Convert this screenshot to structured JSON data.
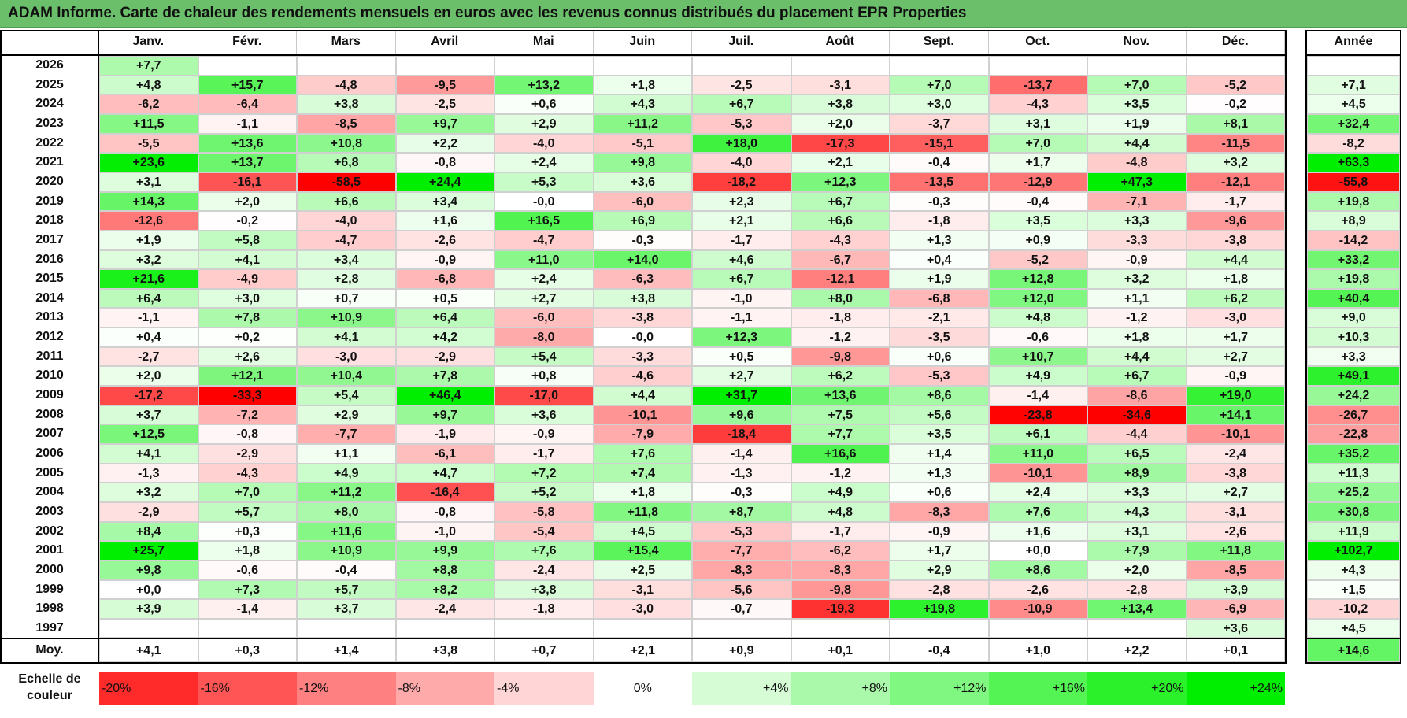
{
  "title": "ADAM Informe. Carte de chaleur des rendements mensuels en euros avec les revenus connus distribués du placement EPR Properties",
  "chart_data": {
    "type": "heatmap",
    "title": "ADAM Informe. Carte de chaleur des rendements mensuels en euros avec les revenus connus distribués du placement EPR Properties",
    "months": [
      "Janv.",
      "Févr.",
      "Mars",
      "Avril",
      "Mai",
      "Juin",
      "Juil.",
      "Août",
      "Sept.",
      "Oct.",
      "Nov.",
      "Déc."
    ],
    "year_header": "Année",
    "rows": [
      {
        "year": "2026",
        "values": [
          "+7,7",
          "",
          "",
          "",
          "",
          "",
          "",
          "",
          "",
          "",
          "",
          ""
        ],
        "annual": ""
      },
      {
        "year": "2025",
        "values": [
          "+4,8",
          "+15,7",
          "-4,8",
          "-9,5",
          "+13,2",
          "+1,8",
          "-2,5",
          "-3,1",
          "+7,0",
          "-13,7",
          "+7,0",
          "-5,2"
        ],
        "annual": "+7,1"
      },
      {
        "year": "2024",
        "values": [
          "-6,2",
          "-6,4",
          "+3,8",
          "-2,5",
          "+0,6",
          "+4,3",
          "+6,7",
          "+3,8",
          "+3,0",
          "-4,3",
          "+3,5",
          "-0,2"
        ],
        "annual": "+4,5"
      },
      {
        "year": "2023",
        "values": [
          "+11,5",
          "-1,1",
          "-8,5",
          "+9,7",
          "+2,9",
          "+11,2",
          "-5,3",
          "+2,0",
          "-3,7",
          "+3,1",
          "+1,9",
          "+8,1"
        ],
        "annual": "+32,4"
      },
      {
        "year": "2022",
        "values": [
          "-5,5",
          "+13,6",
          "+10,8",
          "+2,2",
          "-4,0",
          "-5,1",
          "+18,0",
          "-17,3",
          "-15,1",
          "+7,0",
          "+4,4",
          "-11,5"
        ],
        "annual": "-8,2"
      },
      {
        "year": "2021",
        "values": [
          "+23,6",
          "+13,7",
          "+6,8",
          "-0,8",
          "+2,4",
          "+9,8",
          "-4,0",
          "+2,1",
          "-0,4",
          "+1,7",
          "-4,8",
          "+3,2"
        ],
        "annual": "+63,3"
      },
      {
        "year": "2020",
        "values": [
          "+3,1",
          "-16,1",
          "-58,5",
          "+24,4",
          "+5,3",
          "+3,6",
          "-18,2",
          "+12,3",
          "-13,5",
          "-12,9",
          "+47,3",
          "-12,1"
        ],
        "annual": "-55,8"
      },
      {
        "year": "2019",
        "values": [
          "+14,3",
          "+2,0",
          "+6,6",
          "+3,4",
          "-0,0",
          "-6,0",
          "+2,3",
          "+6,7",
          "-0,3",
          "-0,4",
          "-7,1",
          "-1,7"
        ],
        "annual": "+19,8"
      },
      {
        "year": "2018",
        "values": [
          "-12,6",
          "-0,2",
          "-4,0",
          "+1,6",
          "+16,5",
          "+6,9",
          "+2,1",
          "+6,6",
          "-1,8",
          "+3,5",
          "+3,3",
          "-9,6"
        ],
        "annual": "+8,9"
      },
      {
        "year": "2017",
        "values": [
          "+1,9",
          "+5,8",
          "-4,7",
          "-2,6",
          "-4,7",
          "-0,3",
          "-1,7",
          "-4,3",
          "+1,3",
          "+0,9",
          "-3,3",
          "-3,8"
        ],
        "annual": "-14,2"
      },
      {
        "year": "2016",
        "values": [
          "+3,2",
          "+4,1",
          "+3,4",
          "-0,9",
          "+11,0",
          "+14,0",
          "+4,6",
          "-6,7",
          "+0,4",
          "-5,2",
          "-0,9",
          "+4,4"
        ],
        "annual": "+33,2"
      },
      {
        "year": "2015",
        "values": [
          "+21,6",
          "-4,9",
          "+2,8",
          "-6,8",
          "+2,4",
          "-6,3",
          "+6,7",
          "-12,1",
          "+1,9",
          "+12,8",
          "+3,2",
          "+1,8"
        ],
        "annual": "+19,8"
      },
      {
        "year": "2014",
        "values": [
          "+6,4",
          "+3,0",
          "+0,7",
          "+0,5",
          "+2,7",
          "+3,8",
          "-1,0",
          "+8,0",
          "-6,8",
          "+12,0",
          "+1,1",
          "+6,2"
        ],
        "annual": "+40,4"
      },
      {
        "year": "2013",
        "values": [
          "-1,1",
          "+7,8",
          "+10,9",
          "+6,4",
          "-6,0",
          "-3,8",
          "-1,1",
          "-1,8",
          "-2,1",
          "+4,8",
          "-1,2",
          "-3,0"
        ],
        "annual": "+9,0"
      },
      {
        "year": "2012",
        "values": [
          "+0,4",
          "+0,2",
          "+4,1",
          "+4,2",
          "-8,0",
          "-0,0",
          "+12,3",
          "-1,2",
          "-3,5",
          "-0,6",
          "+1,8",
          "+1,7"
        ],
        "annual": "+10,3"
      },
      {
        "year": "2011",
        "values": [
          "-2,7",
          "+2,6",
          "-3,0",
          "-2,9",
          "+5,4",
          "-3,3",
          "+0,5",
          "-9,8",
          "+0,6",
          "+10,7",
          "+4,4",
          "+2,7"
        ],
        "annual": "+3,3"
      },
      {
        "year": "2010",
        "values": [
          "+2,0",
          "+12,1",
          "+10,4",
          "+7,8",
          "+0,8",
          "-4,6",
          "+2,7",
          "+6,2",
          "-5,3",
          "+4,9",
          "+6,7",
          "-0,9"
        ],
        "annual": "+49,1"
      },
      {
        "year": "2009",
        "values": [
          "-17,2",
          "-33,3",
          "+5,4",
          "+46,4",
          "-17,0",
          "+4,4",
          "+31,7",
          "+13,6",
          "+8,6",
          "-1,4",
          "-8,6",
          "+19,0"
        ],
        "annual": "+24,2"
      },
      {
        "year": "2008",
        "values": [
          "+3,7",
          "-7,2",
          "+2,9",
          "+9,7",
          "+3,6",
          "-10,1",
          "+9,6",
          "+7,5",
          "+5,6",
          "-23,8",
          "-34,6",
          "+14,1"
        ],
        "annual": "-26,7"
      },
      {
        "year": "2007",
        "values": [
          "+12,5",
          "-0,8",
          "-7,7",
          "-1,9",
          "-0,9",
          "-7,9",
          "-18,4",
          "+7,7",
          "+3,5",
          "+6,1",
          "-4,4",
          "-10,1"
        ],
        "annual": "-22,8"
      },
      {
        "year": "2006",
        "values": [
          "+4,1",
          "-2,9",
          "+1,1",
          "-6,1",
          "-1,7",
          "+7,6",
          "-1,4",
          "+16,6",
          "+1,4",
          "+11,0",
          "+6,5",
          "-2,4"
        ],
        "annual": "+35,2"
      },
      {
        "year": "2005",
        "values": [
          "-1,3",
          "-4,3",
          "+4,9",
          "+4,7",
          "+7,2",
          "+7,4",
          "-1,3",
          "-1,2",
          "+1,3",
          "-10,1",
          "+8,9",
          "-3,8"
        ],
        "annual": "+11,3"
      },
      {
        "year": "2004",
        "values": [
          "+3,2",
          "+7,0",
          "+11,2",
          "-16,4",
          "+5,2",
          "+1,8",
          "-0,3",
          "+4,9",
          "+0,6",
          "+2,4",
          "+3,3",
          "+2,7"
        ],
        "annual": "+25,2"
      },
      {
        "year": "2003",
        "values": [
          "-2,9",
          "+5,7",
          "+8,0",
          "-0,8",
          "-5,8",
          "+11,8",
          "+8,7",
          "+4,8",
          "-8,3",
          "+7,6",
          "+4,3",
          "-3,1"
        ],
        "annual": "+30,8"
      },
      {
        "year": "2002",
        "values": [
          "+8,4",
          "+0,3",
          "+11,6",
          "-1,0",
          "-5,4",
          "+4,5",
          "-5,3",
          "-1,7",
          "-0,9",
          "+1,6",
          "+3,1",
          "-2,6"
        ],
        "annual": "+11,9"
      },
      {
        "year": "2001",
        "values": [
          "+25,7",
          "+1,8",
          "+10,9",
          "+9,9",
          "+7,6",
          "+15,4",
          "-7,7",
          "-6,2",
          "+1,7",
          "+0,0",
          "+7,9",
          "+11,8"
        ],
        "annual": "+102,7"
      },
      {
        "year": "2000",
        "values": [
          "+9,8",
          "-0,6",
          "-0,4",
          "+8,8",
          "-2,4",
          "+2,5",
          "-8,3",
          "-8,3",
          "+2,9",
          "+8,6",
          "+2,0",
          "-8,5"
        ],
        "annual": "+4,3"
      },
      {
        "year": "1999",
        "values": [
          "+0,0",
          "+7,3",
          "+5,7",
          "+8,2",
          "+3,8",
          "-3,1",
          "-5,6",
          "-9,8",
          "-2,8",
          "-2,6",
          "-2,8",
          "+3,9"
        ],
        "annual": "+1,5"
      },
      {
        "year": "1998",
        "values": [
          "+3,9",
          "-1,4",
          "+3,7",
          "-2,4",
          "-1,8",
          "-3,0",
          "-0,7",
          "-19,3",
          "+19,8",
          "-10,9",
          "+13,4",
          "-6,9"
        ],
        "annual": "-10,2"
      },
      {
        "year": "1997",
        "values": [
          "",
          "",
          "",
          "",
          "",
          "",
          "",
          "",
          "",
          "",
          "",
          "+3,6"
        ],
        "annual": "+4,5"
      }
    ],
    "average_row": {
      "label": "Moy.",
      "values": [
        "+4,1",
        "+0,3",
        "+1,4",
        "+3,8",
        "+0,7",
        "+2,1",
        "+0,9",
        "+0,1",
        "-0,4",
        "+1,0",
        "+2,2",
        "+0,1"
      ],
      "annual": "+14,6"
    },
    "color_scale": {
      "label": "Echelle de couleur",
      "steps": [
        "-20%",
        "-16%",
        "-12%",
        "-8%",
        "-4%",
        "0%",
        "+4%",
        "+8%",
        "+12%",
        "+16%",
        "+20%",
        "+24%"
      ],
      "negative_color": "#ff0000",
      "positive_color": "#00ee00",
      "neutral_color": "#ffffff"
    }
  }
}
